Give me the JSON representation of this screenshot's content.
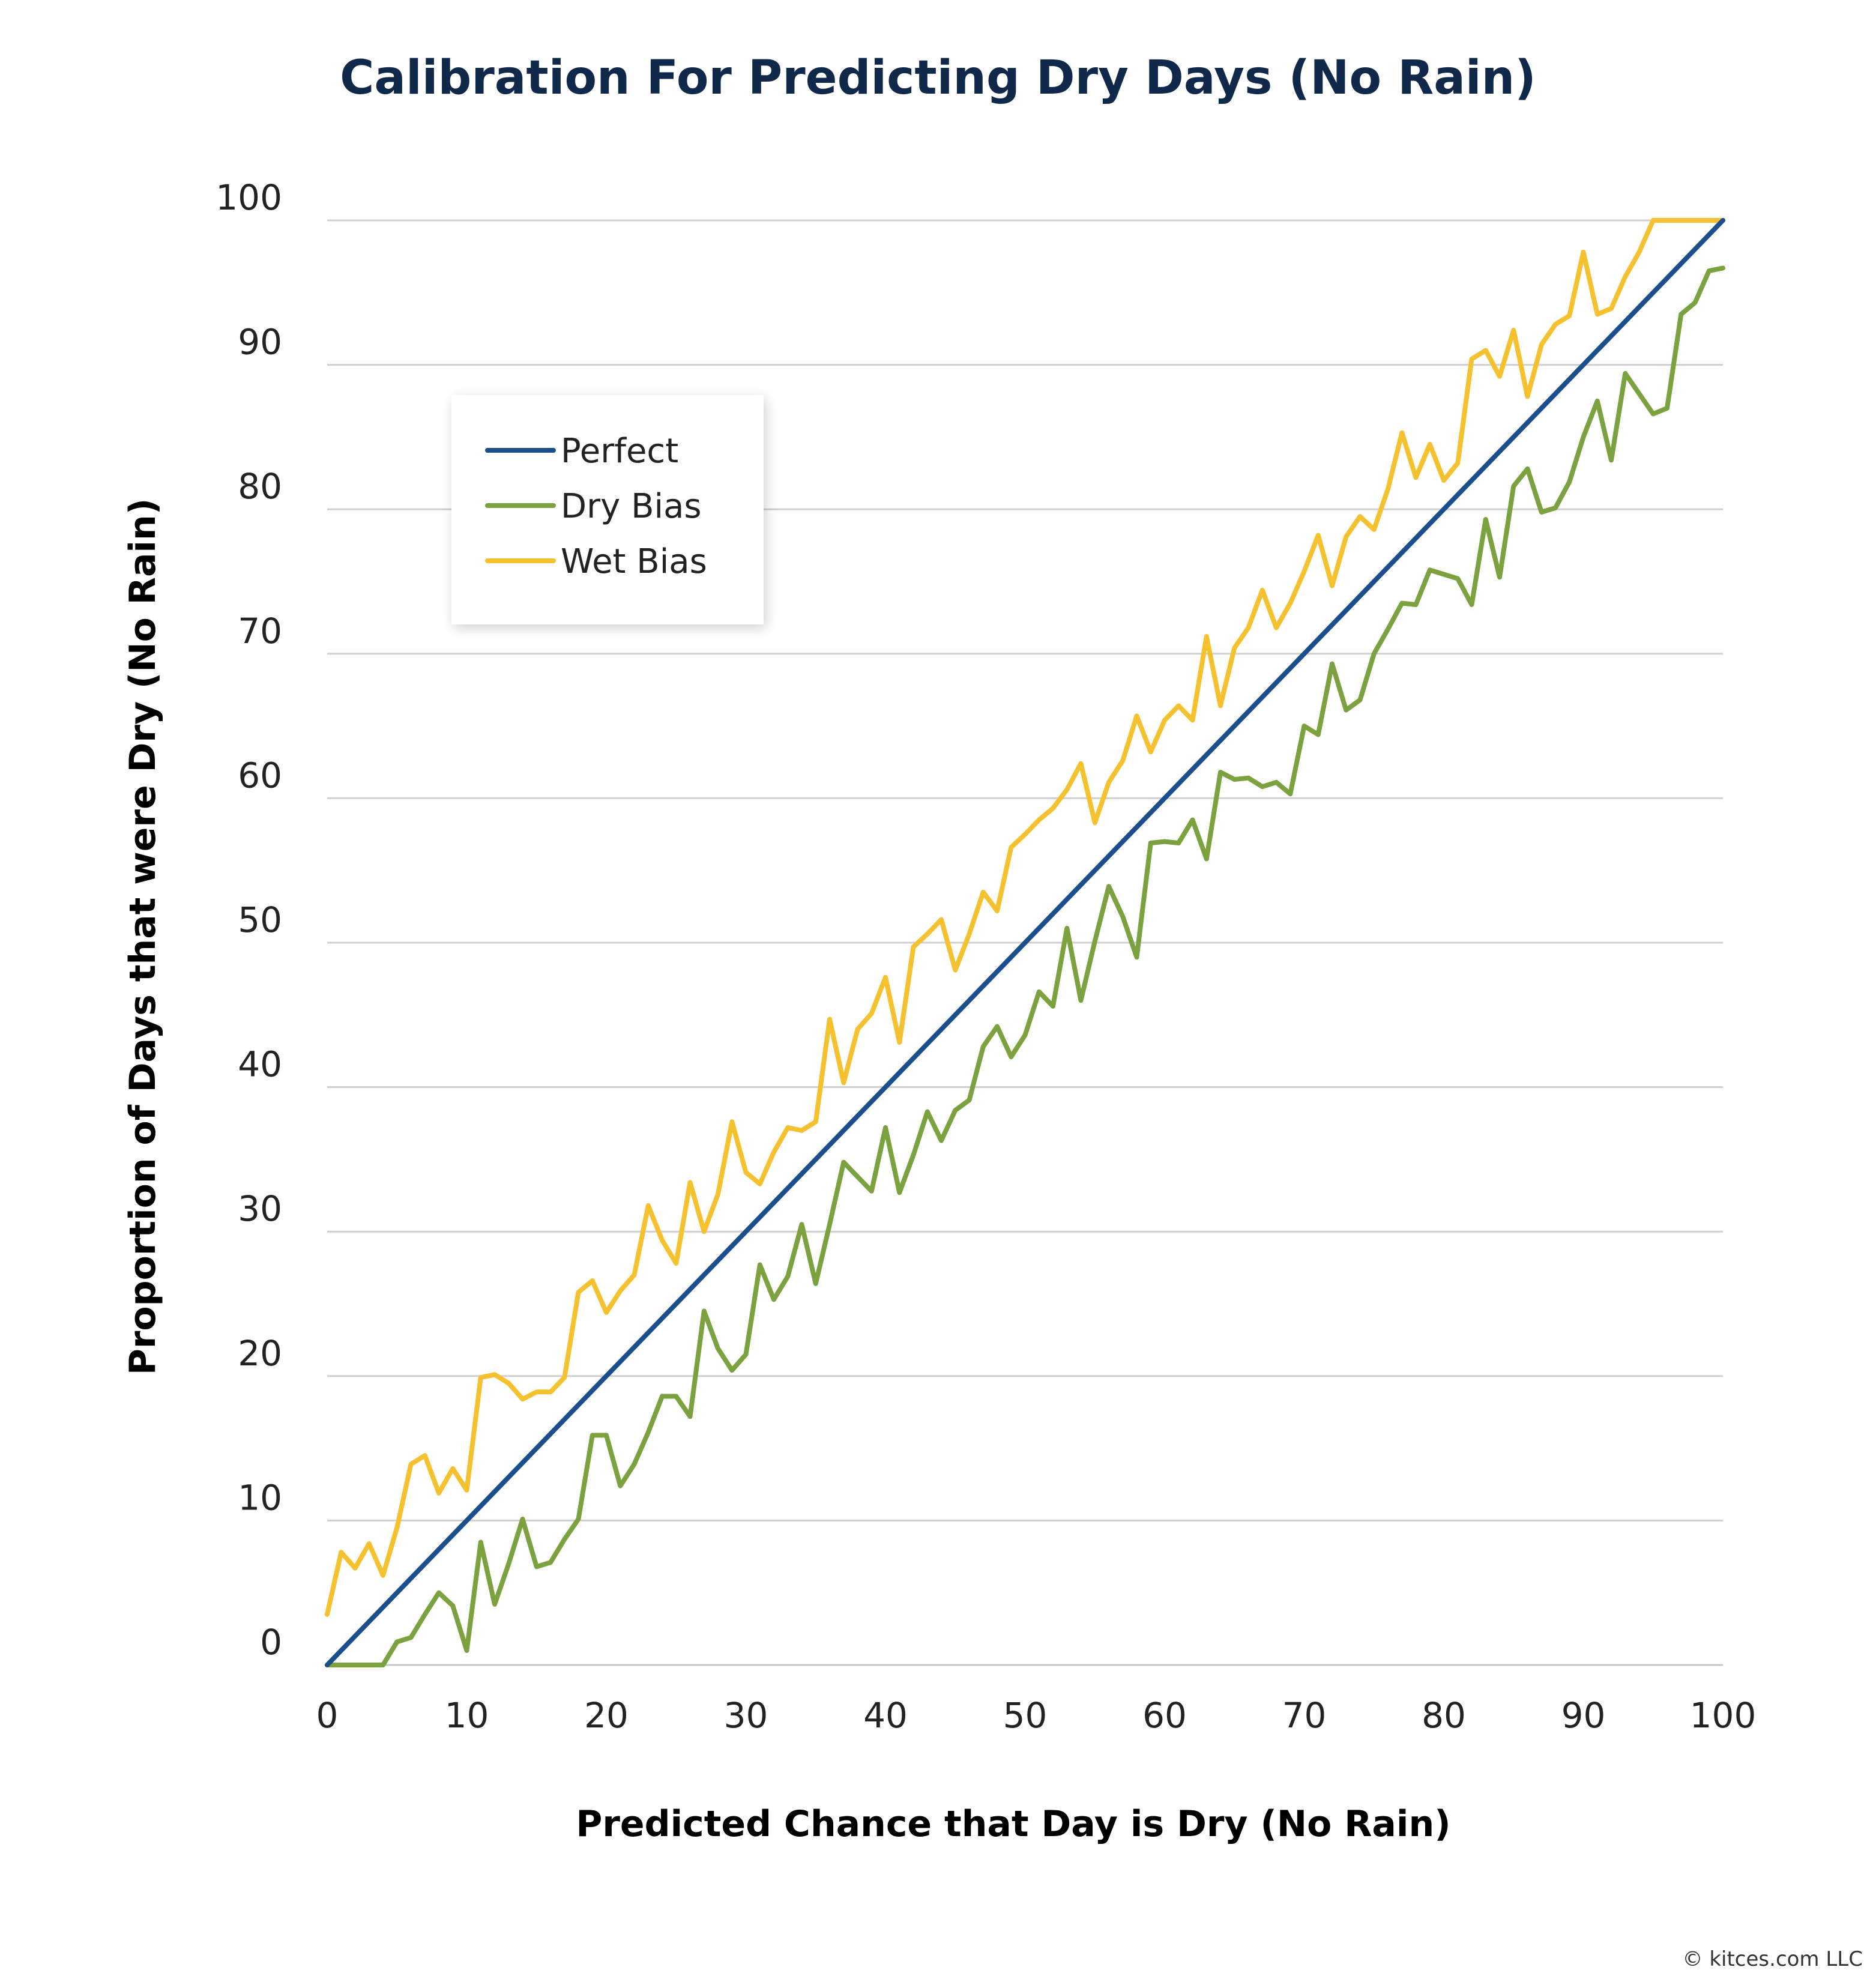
{
  "copyright": "© kitces.com LLC",
  "chart_data": {
    "type": "line",
    "title": "Calibration For Predicting Dry Days (No Rain)",
    "xlabel": "Predicted Chance that Day is Dry (No Rain)",
    "ylabel": "Proportion of Days that were Dry (No Rain)",
    "xlim": [
      0,
      100
    ],
    "ylim": [
      0,
      100
    ],
    "xticks": [
      0,
      10,
      20,
      30,
      40,
      50,
      60,
      70,
      80,
      90,
      100
    ],
    "yticks": [
      0,
      10,
      20,
      30,
      40,
      50,
      60,
      70,
      80,
      90,
      100
    ],
    "grid": "horizontal",
    "legend_position": "top-left",
    "series": [
      {
        "name": "Perfect",
        "color": "#1a4e8c",
        "x": [
          0,
          100
        ],
        "y": [
          0,
          100
        ]
      },
      {
        "name": "Dry Bias",
        "color": "#7ba23f",
        "x": [
          0,
          1,
          2,
          3,
          4,
          5,
          6,
          7,
          8,
          9,
          10,
          11,
          12,
          13,
          14,
          15,
          16,
          17,
          18,
          19,
          20,
          21,
          22,
          23,
          24,
          25,
          26,
          27,
          28,
          29,
          30,
          31,
          32,
          33,
          34,
          35,
          36,
          37,
          38,
          39,
          40,
          41,
          42,
          43,
          44,
          45,
          46,
          47,
          48,
          49,
          50,
          51,
          52,
          53,
          54,
          55,
          56,
          57,
          58,
          59,
          60,
          61,
          62,
          63,
          64,
          65,
          66,
          67,
          68,
          69,
          70,
          71,
          72,
          73,
          74,
          75,
          76,
          77,
          78,
          79,
          80,
          81,
          82,
          83,
          84,
          85,
          86,
          87,
          88,
          89,
          90,
          91,
          92,
          93,
          94,
          95,
          96,
          97,
          98,
          99,
          100
        ],
        "y": [
          0,
          0,
          0,
          0,
          0,
          1.6,
          1.9,
          3.5,
          5,
          4.1,
          1,
          8.5,
          4.2,
          7,
          10.1,
          6.8,
          7.1,
          8.7,
          10.1,
          15.9,
          15.9,
          12.4,
          13.9,
          16.1,
          18.6,
          18.6,
          17.2,
          24.5,
          21.9,
          20.4,
          21.5,
          27.7,
          25.3,
          26.9,
          30.5,
          26.4,
          30.5,
          34.8,
          33.8,
          32.8,
          37.2,
          32.7,
          35.3,
          38.3,
          36.3,
          38.4,
          39.1,
          42.8,
          44.2,
          42.1,
          43.6,
          46.6,
          45.6,
          51,
          46,
          50.1,
          53.9,
          51.8,
          49,
          56.9,
          57,
          56.9,
          58.5,
          55.8,
          61.8,
          61.3,
          61.4,
          60.8,
          61.1,
          60.3,
          65,
          64.4,
          69.3,
          66.1,
          66.8,
          70,
          71.7,
          73.5,
          73.4,
          75.8,
          75.5,
          75.2,
          73.4,
          79.3,
          75.3,
          81.6,
          82.8,
          79.8,
          80.1,
          81.9,
          85,
          87.5,
          83.4,
          89.4,
          88,
          86.6,
          87,
          93.5,
          94.3,
          96.5,
          96.7
        ]
      },
      {
        "name": "Wet Bias",
        "color": "#f5c12e",
        "x": [
          0,
          1,
          2,
          3,
          4,
          5,
          6,
          7,
          8,
          9,
          10,
          11,
          12,
          13,
          14,
          15,
          16,
          17,
          18,
          19,
          20,
          21,
          22,
          23,
          24,
          25,
          26,
          27,
          28,
          29,
          30,
          31,
          32,
          33,
          34,
          35,
          36,
          37,
          38,
          39,
          40,
          41,
          42,
          43,
          44,
          45,
          46,
          47,
          48,
          49,
          50,
          51,
          52,
          53,
          54,
          55,
          56,
          57,
          58,
          59,
          60,
          61,
          62,
          63,
          64,
          65,
          66,
          67,
          68,
          69,
          70,
          71,
          72,
          73,
          74,
          75,
          76,
          77,
          78,
          79,
          80,
          81,
          82,
          83,
          84,
          85,
          86,
          87,
          88,
          89,
          90,
          91,
          92,
          93,
          94,
          95,
          96,
          97,
          98,
          99,
          100
        ],
        "y": [
          3.5,
          7.8,
          6.7,
          8.4,
          6.2,
          9.5,
          13.9,
          14.5,
          11.9,
          13.6,
          12.1,
          19.9,
          20.1,
          19.5,
          18.4,
          18.9,
          18.9,
          19.9,
          25.8,
          26.6,
          24.4,
          25.9,
          27,
          31.8,
          29.4,
          27.8,
          33.4,
          30,
          32.6,
          37.6,
          34.1,
          33.3,
          35.5,
          37.2,
          37,
          37.6,
          44.7,
          40.3,
          44,
          45.1,
          47.6,
          43.1,
          49.7,
          50.6,
          51.6,
          48.1,
          50.6,
          53.5,
          52.2,
          56.6,
          57.5,
          58.5,
          59.3,
          60.6,
          62.4,
          58.3,
          61.1,
          62.6,
          65.7,
          63.2,
          65.4,
          66.4,
          65.4,
          71.2,
          66.4,
          70.4,
          71.8,
          74.4,
          71.8,
          73.5,
          75.7,
          78.2,
          74.7,
          78.1,
          79.5,
          78.6,
          81.4,
          85.3,
          82.2,
          84.5,
          82,
          83.2,
          90.4,
          91,
          89.2,
          92.4,
          87.8,
          91.4,
          92.8,
          93.4,
          97.8,
          93.5,
          93.9,
          96.1,
          97.8,
          100,
          100,
          100,
          100,
          100,
          100
        ]
      }
    ]
  }
}
